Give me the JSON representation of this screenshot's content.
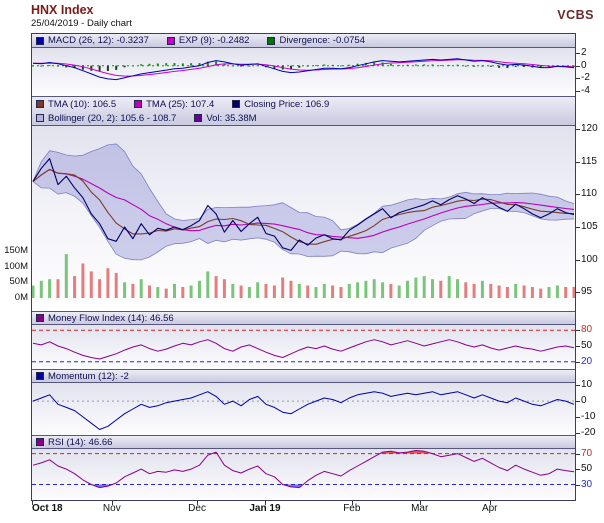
{
  "header": {
    "title": "HNX Index",
    "subtitle": "25/04/2019 - Daily chart",
    "brand": "VCBS"
  },
  "legends": {
    "macd": [
      {
        "label": "MACD (26, 12): -0.3237",
        "color": "#0000bb"
      },
      {
        "label": "EXP (9): -0.2482",
        "color": "#cc00cc"
      },
      {
        "label": "Divergence: -0.0754",
        "color": "#007700"
      }
    ],
    "price": [
      {
        "label": "TMA (10): 106.5",
        "color": "#7a3b2e"
      },
      {
        "label": "TMA (25): 107.4",
        "color": "#bb00bb"
      },
      {
        "label": "Closing Price: 106.9",
        "color": "#000066"
      }
    ],
    "price2": [
      {
        "label": "Bollinger (20, 2): 105.6 - 108.7",
        "color": "#b3b3de"
      },
      {
        "label": "Vol: 35.38M",
        "color": "#660099"
      }
    ],
    "mfi": [
      {
        "label": "Money Flow Index (14): 46.56",
        "color": "#880088"
      }
    ],
    "momentum": [
      {
        "label": "Momentum (12): -2",
        "color": "#0000aa"
      }
    ],
    "rsi": [
      {
        "label": "RSI (14): 46.66",
        "color": "#880088"
      }
    ]
  },
  "axes": {
    "months": [
      {
        "label": "Oct 18",
        "f": 0.0,
        "bold": true
      },
      {
        "label": "Nov",
        "f": 0.147,
        "bold": false
      },
      {
        "label": "Dec",
        "f": 0.304,
        "bold": false
      },
      {
        "label": "Jan 19",
        "f": 0.429,
        "bold": true
      },
      {
        "label": "Feb",
        "f": 0.589,
        "bold": false
      },
      {
        "label": "Mar",
        "f": 0.714,
        "bold": false
      },
      {
        "label": "Apr",
        "f": 0.843,
        "bold": false
      }
    ],
    "macd_ticks": [
      2,
      0,
      -2,
      -4
    ],
    "price_ticks": [
      120,
      115,
      110,
      105,
      100,
      95
    ],
    "volume_ticks": [
      {
        "label": "150M",
        "value": 150
      },
      {
        "label": "100M",
        "value": 100
      },
      {
        "label": "50M",
        "value": 50
      },
      {
        "label": "0M",
        "value": 0
      }
    ],
    "mfi_ticks": [
      80,
      50,
      20
    ],
    "momentum_ticks": [
      10,
      0,
      -10,
      -20
    ],
    "rsi_ticks": [
      70,
      50,
      30
    ]
  },
  "colors": {
    "macd_line": "#0000bb",
    "macd_signal": "#cc00cc",
    "divergence_pos": "#009900",
    "divergence_neg": "#1e3d1e",
    "close_line": "#000066",
    "tma10_line": "#7a3b2e",
    "tma25_line": "#bb00bb",
    "band_fill": "rgba(150,150,215,0.45)",
    "band_edge": "rgba(110,110,190,0.85)",
    "vol_up": "#6cbf6c",
    "vol_down": "#e07070",
    "mfi_line": "#880088",
    "momentum_line": "#0000aa",
    "rsi_line": "#880088",
    "overbought": "#d42222",
    "oversold": "#2828cc",
    "rsi_fill_high": "rgba(240,60,60,0.85)",
    "rsi_fill_low": "rgba(70,70,230,0.75)"
  },
  "chart_data": {
    "type": "line",
    "points": 66,
    "x_tick_labels": [
      "Oct 18",
      "Nov",
      "Dec",
      "Jan 19",
      "Feb",
      "Mar",
      "Apr"
    ],
    "price_ylim": [
      92.1,
      120.5
    ],
    "macd_ylim": [
      -4.8,
      2.8
    ],
    "mfi_ylim": [
      6,
      90
    ],
    "momentum_ylim": [
      -21.5,
      11.5
    ],
    "rsi_ylim": [
      10,
      76
    ],
    "volume_max_m": 150,
    "close": [
      112.0,
      114.0,
      115.5,
      111.5,
      112.8,
      111.0,
      109.5,
      107.0,
      105.5,
      103.2,
      102.8,
      105.0,
      103.2,
      105.5,
      103.8,
      104.8,
      104.5,
      105.0,
      104.6,
      105.2,
      106.0,
      108.3,
      107.0,
      104.2,
      106.0,
      104.3,
      105.5,
      106.5,
      104.0,
      103.6,
      101.8,
      101.4,
      103.0,
      102.2,
      103.3,
      103.8,
      103.2,
      103.0,
      104.5,
      105.3,
      106.2,
      107.0,
      107.8,
      106.4,
      107.2,
      107.6,
      108.0,
      108.4,
      109.0,
      108.4,
      109.2,
      109.8,
      109.3,
      108.6,
      109.5,
      108.8,
      108.0,
      107.4,
      108.5,
      107.8,
      107.0,
      106.4,
      107.0,
      107.8,
      107.2,
      106.9
    ],
    "volume_m": [
      40,
      55,
      60,
      60,
      140,
      70,
      110,
      85,
      60,
      95,
      80,
      50,
      45,
      60,
      40,
      35,
      30,
      45,
      35,
      40,
      55,
      85,
      70,
      60,
      45,
      40,
      35,
      50,
      45,
      40,
      65,
      55,
      45,
      40,
      35,
      45,
      40,
      35,
      45,
      50,
      55,
      60,
      50,
      45,
      40,
      55,
      65,
      70,
      60,
      55,
      70,
      60,
      50,
      45,
      55,
      45,
      40,
      35,
      45,
      40,
      35,
      30,
      35,
      40,
      35,
      35.38
    ],
    "macd": [
      0.4,
      0.3,
      0.5,
      0.3,
      0.0,
      -0.3,
      -0.8,
      -1.3,
      -1.8,
      -2.1,
      -2.2,
      -1.9,
      -1.6,
      -1.3,
      -1.1,
      -0.9,
      -0.7,
      -0.5,
      -0.4,
      -0.2,
      0.0,
      0.5,
      0.8,
      0.6,
      0.3,
      0.1,
      0.2,
      0.3,
      -0.1,
      -0.5,
      -0.9,
      -1.1,
      -1.0,
      -0.8,
      -0.6,
      -0.4,
      -0.4,
      -0.5,
      -0.3,
      0.0,
      0.3,
      0.6,
      0.8,
      0.7,
      0.6,
      0.7,
      0.8,
      0.9,
      1.0,
      0.9,
      1.0,
      1.1,
      0.9,
      0.7,
      0.8,
      0.6,
      0.3,
      0.1,
      0.2,
      0.1,
      -0.1,
      -0.3,
      -0.3,
      -0.1,
      -0.2,
      -0.3237
    ],
    "mfi": [
      55,
      52,
      58,
      50,
      45,
      38,
      32,
      28,
      25,
      30,
      35,
      42,
      48,
      52,
      45,
      40,
      44,
      50,
      55,
      52,
      58,
      62,
      55,
      45,
      40,
      48,
      52,
      45,
      38,
      32,
      28,
      35,
      42,
      48,
      45,
      50,
      44,
      40,
      46,
      52,
      58,
      62,
      58,
      52,
      56,
      60,
      55,
      50,
      54,
      58,
      62,
      58,
      52,
      48,
      52,
      46,
      42,
      46,
      50,
      46,
      44,
      40,
      44,
      48,
      50,
      46.56
    ],
    "momentum": [
      0,
      2,
      4,
      -2,
      -4,
      -6,
      -10,
      -14,
      -18,
      -16,
      -12,
      -8,
      -5,
      -2,
      -4,
      -3,
      -1,
      0,
      1,
      2,
      4,
      6,
      3,
      -2,
      0,
      -3,
      1,
      3,
      -2,
      -4,
      -7,
      -8,
      -5,
      -2,
      0,
      2,
      1,
      -1,
      2,
      4,
      5,
      6,
      5,
      3,
      4,
      5,
      4,
      5,
      6,
      4,
      5,
      6,
      4,
      2,
      4,
      2,
      0,
      -1,
      2,
      0,
      -2,
      -3,
      -1,
      1,
      0,
      -2
    ],
    "rsi": [
      55,
      58,
      62,
      54,
      50,
      44,
      36,
      30,
      26,
      28,
      32,
      40,
      45,
      50,
      44,
      47,
      46,
      49,
      47,
      50,
      55,
      68,
      72,
      55,
      48,
      45,
      50,
      54,
      44,
      40,
      30,
      27,
      26,
      35,
      42,
      47,
      44,
      41,
      48,
      54,
      60,
      66,
      72,
      73,
      71,
      72,
      74,
      73,
      70,
      66,
      68,
      70,
      65,
      60,
      64,
      58,
      52,
      48,
      55,
      50,
      46,
      42,
      44,
      50,
      48,
      46.66
    ]
  }
}
